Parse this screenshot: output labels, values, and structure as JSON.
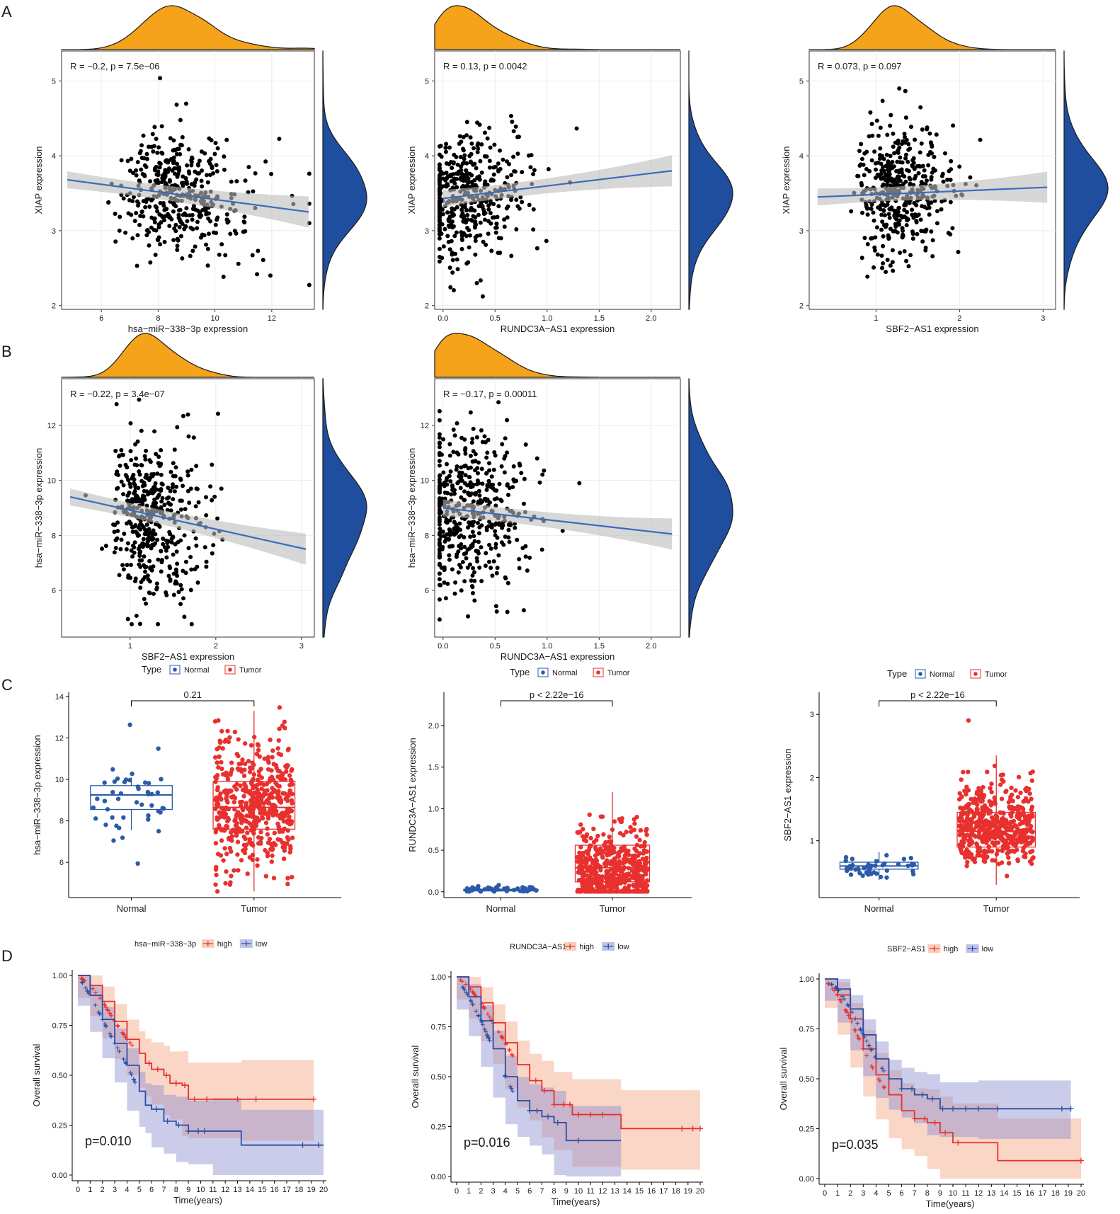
{
  "panels": [
    "A",
    "B",
    "C",
    "D"
  ],
  "colors": {
    "marginal_x": "#f5a31a",
    "marginal_y": "#1f4e9e",
    "fit_line": "#3a6bbd",
    "ci_band": "#bdbdbd",
    "normal": "#2b5aa8",
    "tumor": "#e8302e",
    "km_high": "#e8302e",
    "km_low": "#2b4fa2",
    "km_high_band": "#f4a582",
    "km_low_band": "#8c8fd0"
  },
  "chart_data": [
    {
      "type": "scatter",
      "panel": "A",
      "annotation": "R = −0.2, p = 7.5e−06",
      "xlabel": "hsa−miR−338−3p expression",
      "ylabel": "XIAP expression",
      "xlim": [
        4.6,
        13.5
      ],
      "ylim": [
        1.95,
        5.4
      ],
      "xticks": [
        "6",
        "8",
        "10",
        "12"
      ],
      "yticks": [
        "2",
        "3",
        "4",
        "5"
      ],
      "regression": {
        "x0": 4.8,
        "y0": 3.68,
        "x1": 13.3,
        "y1": 3.25
      },
      "n_points": 430,
      "x_mode": 8.3,
      "x_spread": 1.55,
      "y_center": 3.55,
      "y_spread": 0.4
    },
    {
      "type": "scatter",
      "panel": "A",
      "annotation": "R = 0.13, p = 0.0042",
      "xlabel": "RUNDC3A−AS1 expression",
      "ylabel": "XIAP expression",
      "xlim": [
        -0.08,
        2.28
      ],
      "ylim": [
        1.95,
        5.4
      ],
      "xticks": [
        "0.0",
        "0.5",
        "1.0",
        "1.5",
        "2.0"
      ],
      "yticks": [
        "2",
        "3",
        "4",
        "5"
      ],
      "regression": {
        "x0": 0.0,
        "y0": 3.43,
        "x1": 2.2,
        "y1": 3.8
      },
      "n_points": 460,
      "x_mode": 0.12,
      "x_spread": 0.35,
      "y_center": 3.5,
      "y_spread": 0.42
    },
    {
      "type": "scatter",
      "panel": "A",
      "annotation": "R = 0.073, p = 0.097",
      "xlabel": "SBF2−AS1 expression",
      "ylabel": "XIAP expression",
      "xlim": [
        0.2,
        3.15
      ],
      "ylim": [
        1.95,
        5.4
      ],
      "xticks": [
        "1",
        "2",
        "3"
      ],
      "yticks": [
        "2",
        "3",
        "4",
        "5"
      ],
      "regression": {
        "x0": 0.3,
        "y0": 3.45,
        "x1": 3.05,
        "y1": 3.58
      },
      "n_points": 450,
      "x_mode": 1.15,
      "x_spread": 0.35,
      "y_center": 3.5,
      "y_spread": 0.42
    },
    {
      "type": "scatter",
      "panel": "B",
      "annotation": "R = −0.22, p = 3.4e−07",
      "xlabel": "SBF2−AS1 expression",
      "ylabel": "hsa−miR−338−3p expression",
      "xlim": [
        0.2,
        3.15
      ],
      "ylim": [
        4.3,
        13.7
      ],
      "xticks": [
        "1",
        "2",
        "3"
      ],
      "yticks": [
        "6",
        "8",
        "10",
        "12"
      ],
      "regression": {
        "x0": 0.3,
        "y0": 9.4,
        "x1": 3.05,
        "y1": 7.5
      },
      "n_points": 460,
      "x_mode": 1.15,
      "x_spread": 0.35,
      "y_center": 8.7,
      "y_spread": 1.5
    },
    {
      "type": "scatter",
      "panel": "B",
      "annotation": "R = −0.17, p = 0.00011",
      "xlabel": "RUNDC3A−AS1 expression",
      "ylabel": "hsa−miR−338−3p expression",
      "xlim": [
        -0.08,
        2.28
      ],
      "ylim": [
        4.3,
        13.7
      ],
      "xticks": [
        "0.0",
        "0.5",
        "1.0",
        "1.5",
        "2.0"
      ],
      "yticks": [
        "6",
        "8",
        "10",
        "12"
      ],
      "regression": {
        "x0": 0.0,
        "y0": 9.0,
        "x1": 2.2,
        "y1": 8.05
      },
      "n_points": 470,
      "x_mode": 0.12,
      "x_spread": 0.35,
      "y_center": 8.8,
      "y_spread": 1.5
    },
    {
      "type": "box",
      "panel": "C",
      "legend_title": "Type",
      "legend": [
        "Normal",
        "Tumor"
      ],
      "categories": [
        "Normal",
        "Tumor"
      ],
      "ylabel": "hsa−miR−338−3p expression",
      "comparison_label": "0.21",
      "ylim": [
        4.3,
        14.2
      ],
      "yticks": [
        "6",
        "8",
        "10",
        "12",
        "14"
      ],
      "boxes": [
        {
          "name": "Normal",
          "q1": 8.55,
          "median": 9.25,
          "q3": 9.7,
          "whisker_low": 7.55,
          "whisker_high": 10.1,
          "n": 45,
          "mean": 9.0,
          "sd": 1.1
        },
        {
          "name": "Tumor",
          "q1": 7.6,
          "median": 8.65,
          "q3": 9.9,
          "whisker_low": 4.6,
          "whisker_high": 13.3,
          "n": 520,
          "mean": 8.7,
          "sd": 1.6
        }
      ]
    },
    {
      "type": "box",
      "panel": "C",
      "legend_title": "Type",
      "legend": [
        "Normal",
        "Tumor"
      ],
      "categories": [
        "Normal",
        "Tumor"
      ],
      "ylabel": "RUNDC3A−AS1 expression",
      "comparison_label": "p < 2.22e−16",
      "ylim": [
        -0.07,
        2.4
      ],
      "yticks": [
        "0.0",
        "0.5",
        "1.0",
        "1.5",
        "2.0"
      ],
      "boxes": [
        {
          "name": "Normal",
          "q1": 0.01,
          "median": 0.02,
          "q3": 0.03,
          "whisker_low": 0.0,
          "whisker_high": 0.04,
          "n": 45,
          "mean": 0.03,
          "sd": 0.02
        },
        {
          "name": "Tumor",
          "q1": 0.12,
          "median": 0.29,
          "q3": 0.56,
          "whisker_low": 0.0,
          "whisker_high": 1.2,
          "n": 520,
          "mean": 0.33,
          "sd": 0.3
        }
      ]
    },
    {
      "type": "box",
      "panel": "C",
      "legend_title": "Type",
      "legend": [
        "Normal",
        "Tumor"
      ],
      "categories": [
        "Normal",
        "Tumor"
      ],
      "ylabel": "SBF2−AS1 expression",
      "comparison_label": "p < 2.22e−16",
      "ylim": [
        0.1,
        3.35
      ],
      "yticks": [
        "1",
        "2",
        "3"
      ],
      "boxes": [
        {
          "name": "Normal",
          "q1": 0.55,
          "median": 0.6,
          "q3": 0.66,
          "whisker_low": 0.38,
          "whisker_high": 0.82,
          "n": 45,
          "mean": 0.6,
          "sd": 0.1
        },
        {
          "name": "Tumor",
          "q1": 0.9,
          "median": 1.15,
          "q3": 1.45,
          "whisker_low": 0.3,
          "whisker_high": 2.35,
          "n": 520,
          "mean": 1.2,
          "sd": 0.4
        }
      ]
    },
    {
      "type": "line",
      "subtype": "kaplan-meier",
      "panel": "D",
      "legend_title": "hsa−miR−338−3p",
      "legend": [
        "high",
        "low"
      ],
      "xlabel": "Time(years)",
      "ylabel": "Overall survival",
      "pvalue": "p=0.010",
      "xlim": [
        0,
        20
      ],
      "ylim": [
        0,
        1
      ],
      "xticks": [
        "0",
        "1",
        "2",
        "3",
        "4",
        "5",
        "6",
        "7",
        "8",
        "9",
        "10",
        "11",
        "12",
        "13",
        "14",
        "15",
        "16",
        "17",
        "18",
        "19",
        "20"
      ],
      "yticks": [
        "0.00",
        "0.25",
        "0.50",
        "0.75",
        "1.00"
      ],
      "series": [
        {
          "name": "high",
          "points": [
            [
              0,
              1
            ],
            [
              1,
              0.95
            ],
            [
              2,
              0.87
            ],
            [
              3,
              0.77
            ],
            [
              4,
              0.68
            ],
            [
              5,
              0.61
            ],
            [
              5.5,
              0.56
            ],
            [
              6,
              0.53
            ],
            [
              7,
              0.5
            ],
            [
              7.5,
              0.46
            ],
            [
              8.5,
              0.45
            ],
            [
              9,
              0.38
            ],
            [
              13.3,
              0.38
            ],
            [
              19.2,
              0.38
            ]
          ],
          "band": [
            0.05,
            0.22
          ]
        },
        {
          "name": "low",
          "points": [
            [
              0,
              1
            ],
            [
              1,
              0.9
            ],
            [
              2,
              0.78
            ],
            [
              3,
              0.66
            ],
            [
              4,
              0.55
            ],
            [
              5,
              0.42
            ],
            [
              5.5,
              0.35
            ],
            [
              6,
              0.33
            ],
            [
              7,
              0.27
            ],
            [
              8,
              0.25
            ],
            [
              9,
              0.22
            ],
            [
              11,
              0.22
            ],
            [
              13.3,
              0.15
            ],
            [
              20,
              0.15
            ]
          ],
          "band": [
            0.04,
            0.2
          ]
        }
      ],
      "censor_high": [
        5.8,
        6.5,
        7.2,
        8.0,
        8.7,
        9.5,
        10.5,
        13.0,
        14.5,
        19.2
      ],
      "censor_low": [
        6.4,
        7.3,
        8.2,
        9.0,
        9.8,
        10.3,
        18.3,
        19.6
      ]
    },
    {
      "type": "line",
      "subtype": "kaplan-meier",
      "panel": "D",
      "legend_title": "RUNDC3A−AS1",
      "legend": [
        "high",
        "low"
      ],
      "xlabel": "Time(years)",
      "ylabel": "Overall survival",
      "pvalue": "p=0.016",
      "xlim": [
        0,
        20
      ],
      "ylim": [
        0,
        1
      ],
      "xticks": [
        "0",
        "1",
        "2",
        "3",
        "4",
        "5",
        "6",
        "7",
        "8",
        "9",
        "10",
        "11",
        "12",
        "13",
        "14",
        "15",
        "16",
        "17",
        "18",
        "19",
        "20"
      ],
      "yticks": [
        "0.00",
        "0.25",
        "0.50",
        "0.75",
        "1.00"
      ],
      "series": [
        {
          "name": "high",
          "points": [
            [
              0,
              1
            ],
            [
              1,
              0.95
            ],
            [
              2,
              0.87
            ],
            [
              3,
              0.77
            ],
            [
              4,
              0.67
            ],
            [
              5,
              0.56
            ],
            [
              6,
              0.48
            ],
            [
              7,
              0.43
            ],
            [
              8,
              0.36
            ],
            [
              9.5,
              0.31
            ],
            [
              13.5,
              0.24
            ],
            [
              20,
              0.24
            ]
          ],
          "band": [
            0.05,
            0.22
          ]
        },
        {
          "name": "low",
          "points": [
            [
              0,
              1
            ],
            [
              1,
              0.9
            ],
            [
              2,
              0.78
            ],
            [
              3,
              0.64
            ],
            [
              4,
              0.5
            ],
            [
              5,
              0.38
            ],
            [
              6,
              0.33
            ],
            [
              7,
              0.3
            ],
            [
              8,
              0.27
            ],
            [
              9,
              0.18
            ],
            [
              13.5,
              0.18
            ]
          ],
          "band": [
            0.05,
            0.2
          ]
        }
      ],
      "censor_high": [
        6.5,
        7.2,
        8.0,
        8.8,
        9.3,
        10.0,
        11.0,
        12.0,
        18.5,
        19.4,
        20.0
      ],
      "censor_low": [
        6.0,
        6.6,
        7.5,
        8.3,
        10.0
      ]
    },
    {
      "type": "line",
      "subtype": "kaplan-meier",
      "panel": "D",
      "legend_title": "SBF2−AS1",
      "legend": [
        "high",
        "low"
      ],
      "xlabel": "Time(years)",
      "ylabel": "Overall survival",
      "pvalue": "p=0.035",
      "xlim": [
        0,
        20
      ],
      "ylim": [
        0,
        1
      ],
      "xticks": [
        "0",
        "1",
        "2",
        "3",
        "4",
        "5",
        "6",
        "7",
        "8",
        "9",
        "10",
        "11",
        "12",
        "13",
        "14",
        "15",
        "16",
        "17",
        "18",
        "19",
        "20"
      ],
      "yticks": [
        "0.00",
        "0.25",
        "0.50",
        "0.75",
        "1.00"
      ],
      "series": [
        {
          "name": "high",
          "points": [
            [
              0,
              1
            ],
            [
              1,
              0.92
            ],
            [
              2,
              0.8
            ],
            [
              3,
              0.65
            ],
            [
              4,
              0.52
            ],
            [
              5,
              0.42
            ],
            [
              6,
              0.34
            ],
            [
              7,
              0.3
            ],
            [
              8,
              0.28
            ],
            [
              9,
              0.23
            ],
            [
              10,
              0.18
            ],
            [
              13.5,
              0.09
            ],
            [
              20,
              0.09
            ]
          ],
          "band": [
            0.05,
            0.24
          ]
        },
        {
          "name": "low",
          "points": [
            [
              0,
              1
            ],
            [
              1,
              0.95
            ],
            [
              2,
              0.85
            ],
            [
              3,
              0.72
            ],
            [
              4,
              0.6
            ],
            [
              5,
              0.5
            ],
            [
              6,
              0.45
            ],
            [
              7,
              0.42
            ],
            [
              8,
              0.4
            ],
            [
              9,
              0.35
            ],
            [
              12,
              0.35
            ],
            [
              19.2,
              0.35
            ]
          ],
          "band": [
            0.05,
            0.16
          ]
        }
      ],
      "censor_high": [
        7.0,
        7.8,
        8.6,
        9.4,
        10.4,
        20.0
      ],
      "censor_low": [
        6.0,
        6.8,
        7.6,
        8.4,
        9.2,
        10.0,
        11.0,
        12.0,
        13.5,
        18.5,
        19.2
      ]
    }
  ]
}
